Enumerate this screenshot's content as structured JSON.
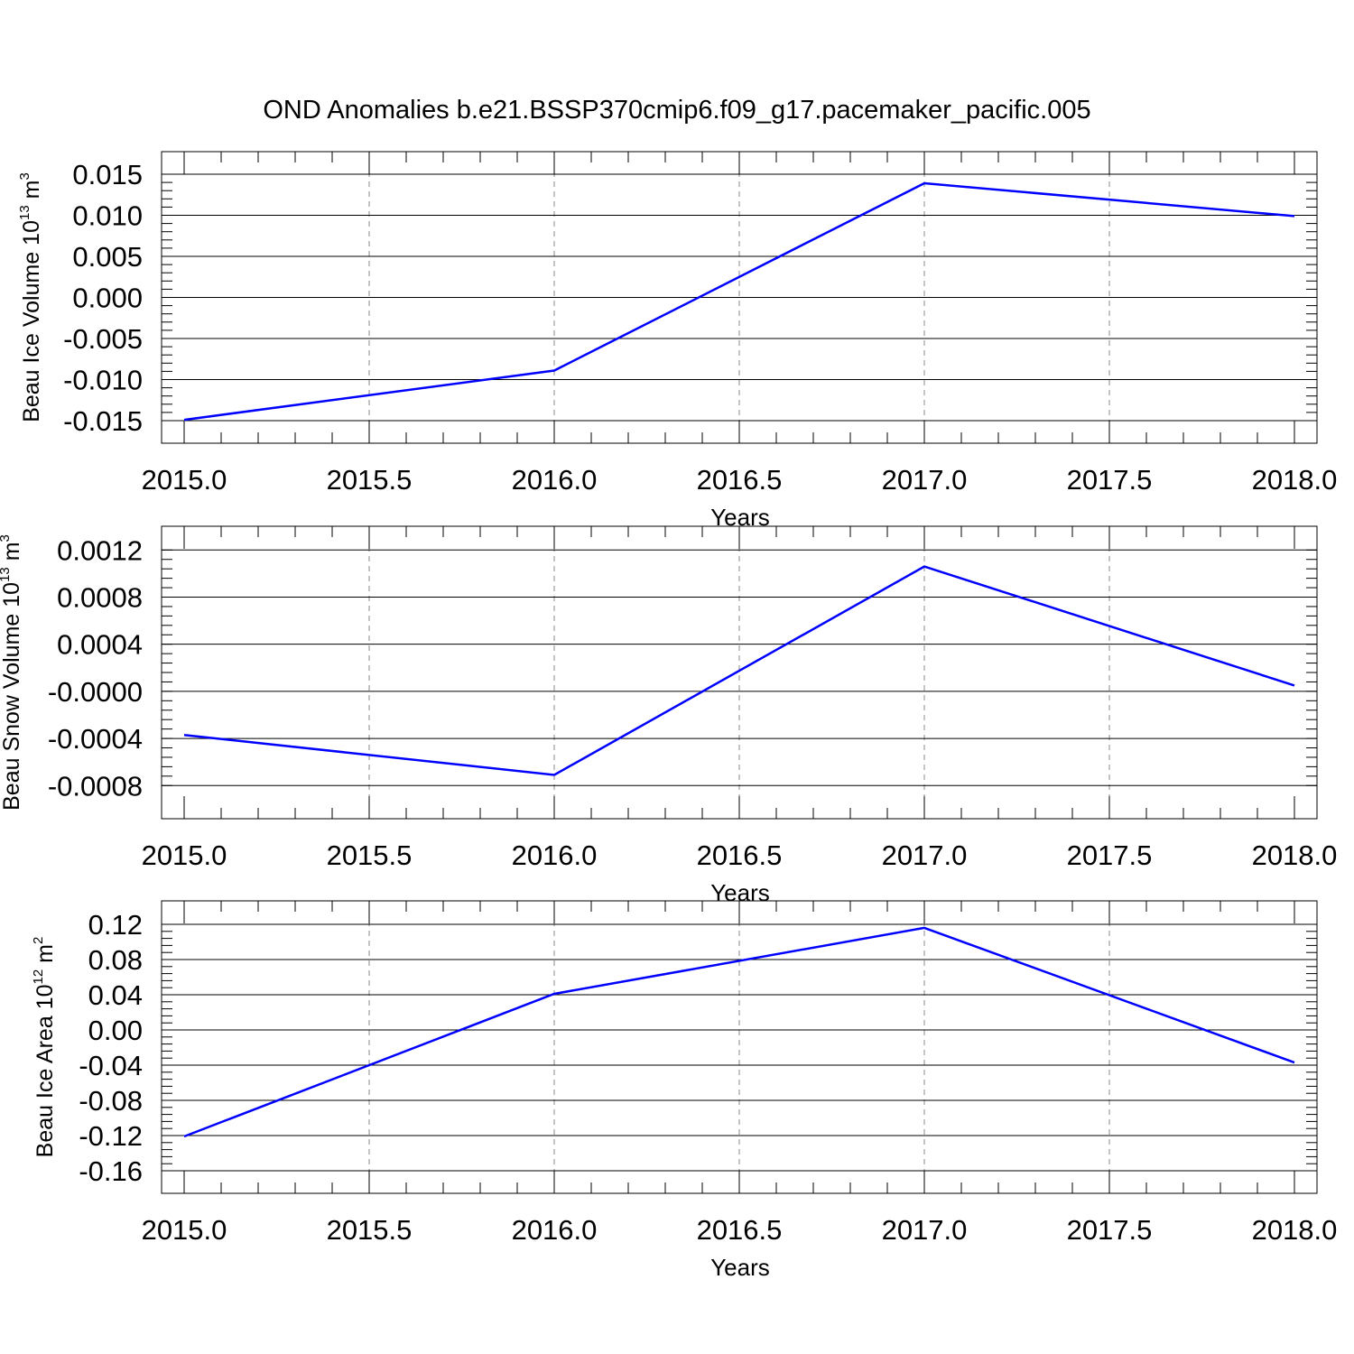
{
  "title": "OND Anomalies b.e21.BSSP370cmip6.f09_g17.pacemaker_pacific.005",
  "chart_data": [
    {
      "type": "line",
      "title": "OND Anomalies b.e21.BSSP370cmip6.f09_g17.pacemaker_pacific.005",
      "xlabel": "Years",
      "ylabel": {
        "base": "Beau Ice Volume 10",
        "exp": "13",
        "unit": " m",
        "unit_exp": "3"
      },
      "xlim": [
        2015,
        2018
      ],
      "ylim": [
        -0.015,
        0.015
      ],
      "xticks": [
        "2015.0",
        "2015.5",
        "2016.0",
        "2016.5",
        "2017.0",
        "2017.5",
        "2018.0"
      ],
      "yticks": [
        "0.015",
        "0.010",
        "0.005",
        "0.000",
        "-0.005",
        "-0.010",
        "-0.015"
      ],
      "grid": "vertical dashed at major x ticks",
      "series": [
        {
          "color": "#0000ff",
          "x": [
            2015,
            2016,
            2017,
            2018
          ],
          "y": [
            -0.0149,
            -0.0089,
            0.0139,
            0.0099
          ]
        }
      ]
    },
    {
      "type": "line",
      "xlabel": "Years",
      "ylabel": {
        "base": "Beau Snow Volume 10",
        "exp": "13",
        "unit": " m",
        "unit_exp": "3"
      },
      "xlim": [
        2015,
        2018
      ],
      "ylim": [
        -0.00089,
        0.00121
      ],
      "xticks": [
        "2015.0",
        "2015.5",
        "2016.0",
        "2016.5",
        "2017.0",
        "2017.5",
        "2018.0"
      ],
      "yticks": [
        "0.0012",
        "0.0008",
        "0.0004",
        "-0.0000",
        "-0.0004",
        "-0.0008"
      ],
      "grid": "vertical dashed at major x ticks",
      "series": [
        {
          "color": "#0000ff",
          "x": [
            2015,
            2016,
            2017,
            2018
          ],
          "y": [
            -0.00037,
            -0.00071,
            0.00106,
            5e-05
          ]
        }
      ]
    },
    {
      "type": "line",
      "xlabel": "Years",
      "ylabel": {
        "base": "Beau Ice Area 10",
        "exp": "12",
        "unit": " m",
        "unit_exp": "2"
      },
      "xlim": [
        2015,
        2018
      ],
      "ylim": [
        -0.16,
        0.12
      ],
      "xticks": [
        "2015.0",
        "2015.5",
        "2016.0",
        "2016.5",
        "2017.0",
        "2017.5",
        "2018.0"
      ],
      "yticks": [
        "0.12",
        "0.08",
        "0.04",
        "0.00",
        "-0.04",
        "-0.08",
        "-0.12",
        "-0.16"
      ],
      "grid": "vertical dashed at major x ticks",
      "series": [
        {
          "color": "#0000ff",
          "x": [
            2015,
            2016,
            2017,
            2018
          ],
          "y": [
            -0.121,
            0.041,
            0.116,
            -0.037
          ]
        }
      ]
    }
  ]
}
